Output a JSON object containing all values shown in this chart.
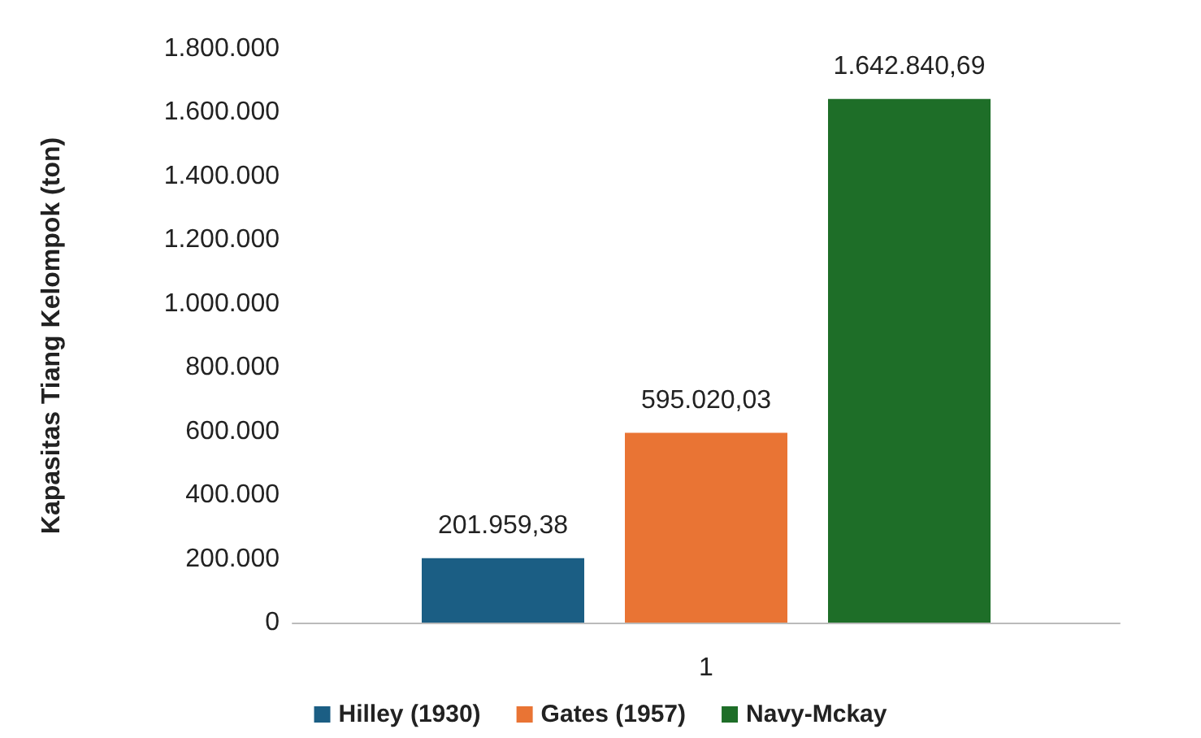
{
  "chart_data": {
    "type": "bar",
    "ylabel": "Kapasitas Tiang Kelompok (ton)",
    "categories": [
      "1"
    ],
    "series": [
      {
        "name": "Hilley (1930)",
        "color": "#1b5e84",
        "values": [
          201959.38
        ],
        "value_labels": [
          "201.959,38"
        ]
      },
      {
        "name": "Gates (1957)",
        "color": "#e97434",
        "values": [
          595020.03
        ],
        "value_labels": [
          "595.020,03"
        ]
      },
      {
        "name": "Navy-Mckay",
        "color": "#1e6e28",
        "values": [
          1642840.69
        ],
        "value_labels": [
          "1.642.840,69"
        ]
      }
    ],
    "ylim": [
      0,
      1800000
    ],
    "yticks": [
      0,
      {
        "value": 200000,
        "label": "200.000"
      },
      {
        "value": 400000,
        "label": "400.000"
      },
      {
        "value": 600000,
        "label": "600.000"
      },
      {
        "value": 800000,
        "label": "800.000"
      },
      {
        "value": 1000000,
        "label": "1.000.000"
      },
      {
        "value": 1200000,
        "label": "1.200.000"
      },
      {
        "value": 1400000,
        "label": "1.400.000"
      },
      {
        "value": 1600000,
        "label": "1.600.000"
      },
      {
        "value": 1800000,
        "label": "1.800.000"
      }
    ],
    "legend": "bottom"
  }
}
